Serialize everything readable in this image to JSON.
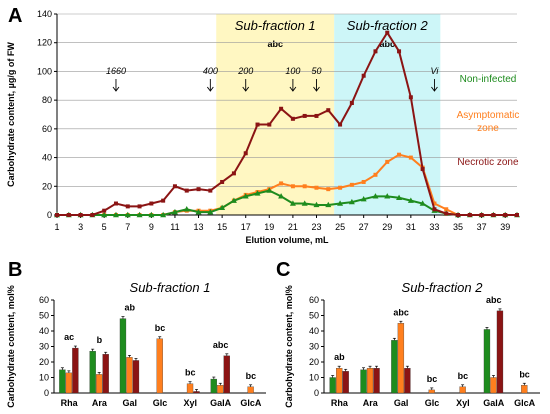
{
  "figure": {
    "panel_a_letter": "A",
    "panel_b_letter": "B",
    "panel_c_letter": "C"
  },
  "colors": {
    "non_infected": "#1e8c1e",
    "asymptomatic": "#ff7f1e",
    "necrotic": "#8b1414",
    "subfraction1_band": "#fff7c2",
    "subfraction2_band": "#cdf6f8"
  },
  "chart_data": [
    {
      "id": "A",
      "type": "line",
      "xlabel": "Elution volume, mL",
      "ylabel": "Carbohydrate content, µg/g of FW",
      "ylim": [
        0,
        140
      ],
      "yticks": [
        0,
        20,
        40,
        60,
        80,
        100,
        120,
        140
      ],
      "xlim": [
        1,
        40
      ],
      "xticks": [
        1,
        3,
        5,
        7,
        9,
        11,
        13,
        15,
        17,
        19,
        21,
        23,
        25,
        27,
        29,
        31,
        33,
        35,
        37,
        39
      ],
      "x": [
        1,
        2,
        3,
        4,
        5,
        6,
        7,
        8,
        9,
        10,
        11,
        12,
        13,
        14,
        15,
        16,
        17,
        18,
        19,
        20,
        21,
        22,
        23,
        24,
        25,
        26,
        27,
        28,
        29,
        30,
        31,
        32,
        33,
        34,
        35,
        36,
        37,
        38,
        39,
        40
      ],
      "series": [
        {
          "name": "Non-infected",
          "color": "#1e8c1e",
          "marker": "triangle",
          "values": [
            0,
            0,
            0,
            0,
            0,
            0,
            0,
            0,
            0,
            0,
            2,
            4,
            2,
            2,
            5,
            10,
            13,
            15,
            17,
            13,
            8,
            8,
            7,
            7,
            8,
            9,
            11,
            13,
            13,
            12,
            10,
            8,
            3,
            1,
            0,
            0,
            0,
            0,
            0,
            0
          ]
        },
        {
          "name": "Asymptomatic zone",
          "color": "#ff7f1e",
          "marker": "square",
          "values": [
            0,
            0,
            0,
            0,
            0,
            0,
            0,
            0,
            0,
            0,
            2,
            3,
            3,
            3,
            5,
            10,
            14,
            16,
            18,
            22,
            20,
            20,
            19,
            18,
            19,
            21,
            23,
            28,
            37,
            42,
            40,
            33,
            8,
            4,
            0,
            0,
            0,
            0,
            0,
            0
          ]
        },
        {
          "name": "Necrotic zone",
          "color": "#8b1414",
          "marker": "square",
          "values": [
            0,
            0,
            0,
            0,
            3,
            8,
            6,
            6,
            8,
            10,
            20,
            17,
            18,
            17,
            23,
            29,
            43,
            63,
            63,
            74,
            67,
            69,
            69,
            73,
            63,
            78,
            97,
            114,
            127,
            114,
            82,
            32,
            4,
            1,
            0,
            0,
            0,
            0,
            0,
            0
          ]
        }
      ],
      "legend": [
        "Non-infected",
        "Asymptomatic zone",
        "Necrotic zone"
      ],
      "legend_placement": "right",
      "annotations": {
        "markers": [
          {
            "label": "1660",
            "x": 6
          },
          {
            "label": "400",
            "x": 14
          },
          {
            "label": "200",
            "x": 17
          },
          {
            "label": "100",
            "x": 21
          },
          {
            "label": "50",
            "x": 23
          },
          {
            "label": "Vi",
            "x": 33
          }
        ],
        "bands": [
          {
            "label": "Sub-fraction 1",
            "letters": "abc",
            "x_start": 14.5,
            "x_end": 24.5
          },
          {
            "label": "Sub-fraction 2",
            "letters": "abc",
            "x_start": 24.5,
            "x_end": 33.5
          }
        ]
      }
    },
    {
      "id": "B",
      "type": "bar",
      "title": "Sub-fraction 1",
      "ylabel": "Carbohydrate content, mol%",
      "ylim": [
        0,
        60
      ],
      "yticks": [
        0,
        10,
        20,
        30,
        40,
        50,
        60
      ],
      "categories": [
        "Rha",
        "Ara",
        "Gal",
        "Glc",
        "Xyl",
        "GalA",
        "GlcA"
      ],
      "significance": [
        "ac",
        "b",
        "ab",
        "bc",
        "bc",
        "abc",
        "bc"
      ],
      "series": [
        {
          "name": "Non-infected",
          "color": "#1e8c1e",
          "values": [
            15,
            27,
            48,
            0,
            0,
            9,
            0
          ]
        },
        {
          "name": "Asymptomatic zone",
          "color": "#ff7f1e",
          "values": [
            13,
            12,
            23,
            35,
            6,
            5,
            4
          ]
        },
        {
          "name": "Necrotic zone",
          "color": "#8b1414",
          "values": [
            29,
            25,
            21,
            0,
            1,
            24,
            0
          ]
        }
      ]
    },
    {
      "id": "C",
      "type": "bar",
      "title": "Sub-fraction 2",
      "ylabel": "Carbohydrate content, mol%",
      "ylim": [
        0,
        60
      ],
      "yticks": [
        0,
        10,
        20,
        30,
        40,
        50,
        60
      ],
      "categories": [
        "Rha",
        "Ara",
        "Gal",
        "Glc",
        "Xyl",
        "GalA",
        "GlcA"
      ],
      "significance": [
        "ab",
        "",
        "abc",
        "bc",
        "bc",
        "abc",
        "bc"
      ],
      "series": [
        {
          "name": "Non-infected",
          "color": "#1e8c1e",
          "values": [
            10,
            15,
            34,
            0,
            0,
            41,
            0
          ]
        },
        {
          "name": "Asymptomatic zone",
          "color": "#ff7f1e",
          "values": [
            16,
            16,
            45,
            2,
            4,
            10,
            5
          ]
        },
        {
          "name": "Necrotic zone",
          "color": "#8b1414",
          "values": [
            14,
            16,
            16,
            0,
            0,
            53,
            0
          ]
        }
      ]
    }
  ]
}
